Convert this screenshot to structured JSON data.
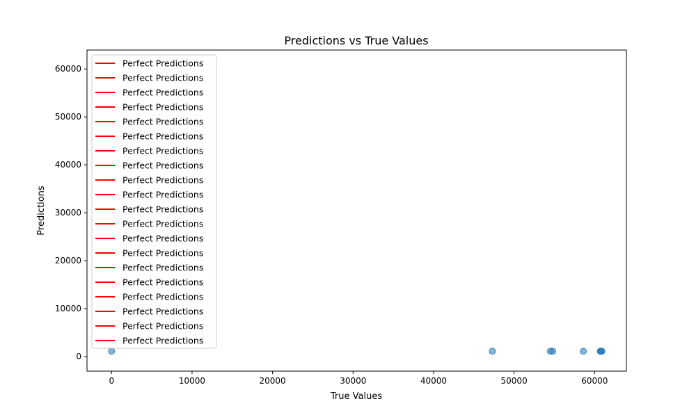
{
  "chart_data": {
    "type": "scatter",
    "title": "Predictions vs True Values",
    "xlabel": "True Values",
    "ylabel": "Predictions",
    "xlim": [
      -3050,
      63950
    ],
    "ylim": [
      -3050,
      63950
    ],
    "x_ticks": [
      0,
      10000,
      20000,
      30000,
      40000,
      50000,
      60000
    ],
    "y_ticks": [
      0,
      10000,
      20000,
      30000,
      40000,
      50000,
      60000
    ],
    "grid": false,
    "legend_position": "upper-left",
    "series": [
      {
        "name": "",
        "kind": "scatter",
        "color": "#1f77b4",
        "points": [
          {
            "x": 0,
            "y": 1100
          },
          {
            "x": 47300,
            "y": 1100
          },
          {
            "x": 54500,
            "y": 1100
          },
          {
            "x": 54800,
            "y": 1100
          },
          {
            "x": 58600,
            "y": 1100
          },
          {
            "x": 60700,
            "y": 1100
          },
          {
            "x": 60800,
            "y": 1100
          },
          {
            "x": 60900,
            "y": 1100
          }
        ]
      }
    ],
    "legend_entries": [
      {
        "label": "Perfect Predictions",
        "color": "#ff0000"
      },
      {
        "label": "Perfect Predictions",
        "color": "#ff0000"
      },
      {
        "label": "Perfect Predictions",
        "color": "#ff0000"
      },
      {
        "label": "Perfect Predictions",
        "color": "#ff0000"
      },
      {
        "label": "Perfect Predictions",
        "color": "#ff0000"
      },
      {
        "label": "Perfect Predictions",
        "color": "#ff0000"
      },
      {
        "label": "Perfect Predictions",
        "color": "#ff0000"
      },
      {
        "label": "Perfect Predictions",
        "color": "#ff0000"
      },
      {
        "label": "Perfect Predictions",
        "color": "#ff0000"
      },
      {
        "label": "Perfect Predictions",
        "color": "#ff0000"
      },
      {
        "label": "Perfect Predictions",
        "color": "#ff0000"
      },
      {
        "label": "Perfect Predictions",
        "color": "#ff0000"
      },
      {
        "label": "Perfect Predictions",
        "color": "#ff0000"
      },
      {
        "label": "Perfect Predictions",
        "color": "#ff0000"
      },
      {
        "label": "Perfect Predictions",
        "color": "#ff0000"
      },
      {
        "label": "Perfect Predictions",
        "color": "#ff0000"
      },
      {
        "label": "Perfect Predictions",
        "color": "#ff0000"
      },
      {
        "label": "Perfect Predictions",
        "color": "#ff0000"
      },
      {
        "label": "Perfect Predictions",
        "color": "#ff0000"
      },
      {
        "label": "Perfect Predictions",
        "color": "#ff0000"
      }
    ]
  }
}
